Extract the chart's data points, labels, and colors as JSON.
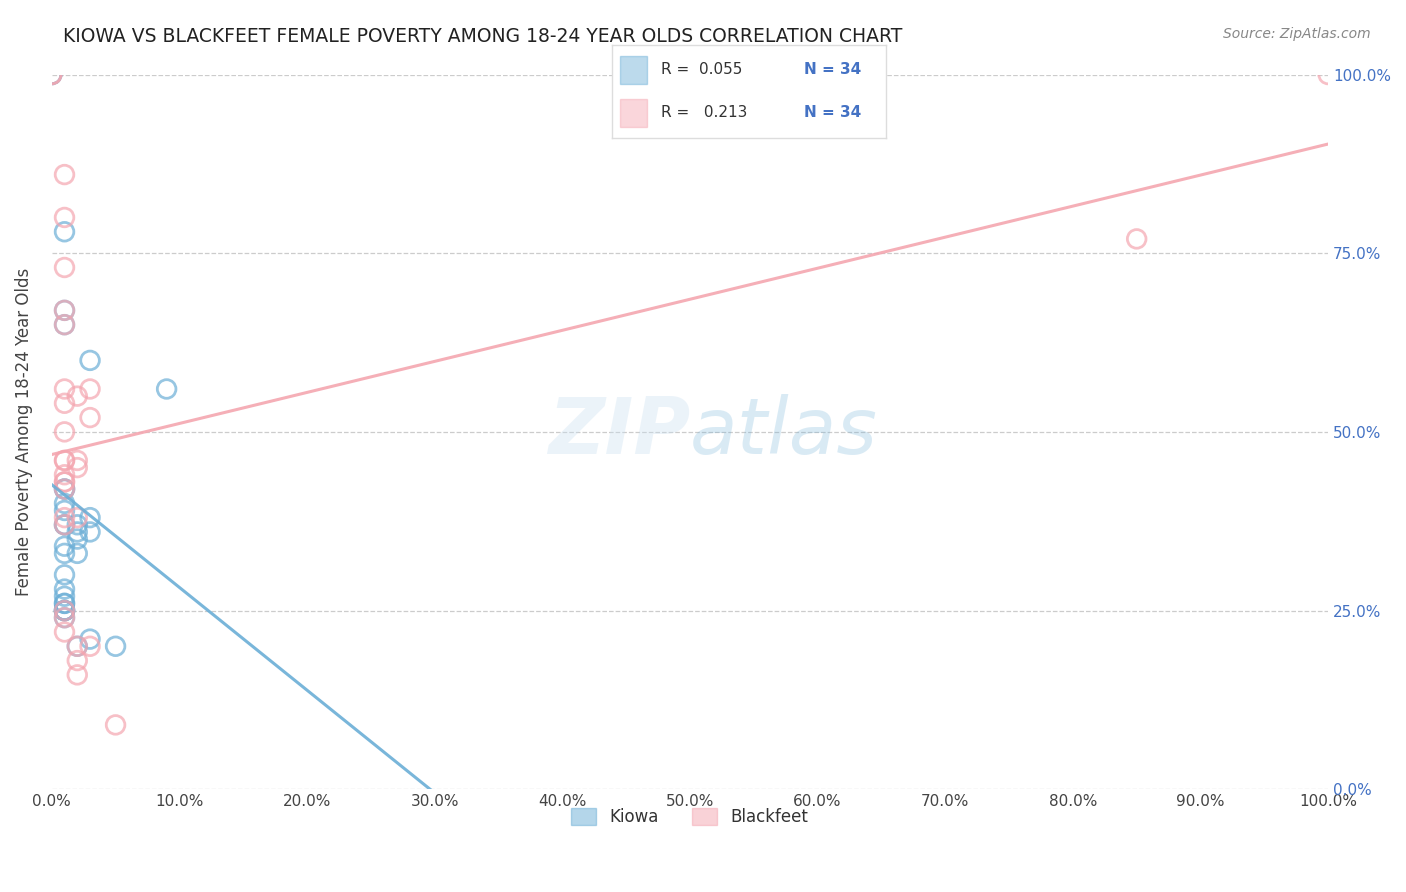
{
  "title": "KIOWA VS BLACKFEET FEMALE POVERTY AMONG 18-24 YEAR OLDS CORRELATION CHART",
  "source": "Source: ZipAtlas.com",
  "ylabel": "Female Poverty Among 18-24 Year Olds",
  "kiowa_color": "#6baed6",
  "blackfeet_color": "#f4a6b0",
  "kiowa_scatter": [
    [
      0.0,
      1.0
    ],
    [
      0.0,
      1.0
    ],
    [
      1.0,
      0.78
    ],
    [
      1.0,
      0.67
    ],
    [
      1.0,
      0.65
    ],
    [
      1.0,
      0.42
    ],
    [
      1.0,
      0.42
    ],
    [
      1.0,
      0.4
    ],
    [
      1.0,
      0.39
    ],
    [
      1.0,
      0.37
    ],
    [
      1.0,
      0.37
    ],
    [
      1.0,
      0.34
    ],
    [
      1.0,
      0.33
    ],
    [
      1.0,
      0.3
    ],
    [
      1.0,
      0.28
    ],
    [
      1.0,
      0.27
    ],
    [
      1.0,
      0.26
    ],
    [
      1.0,
      0.26
    ],
    [
      1.0,
      0.25
    ],
    [
      1.0,
      0.25
    ],
    [
      1.0,
      0.25
    ],
    [
      1.0,
      0.25
    ],
    [
      1.0,
      0.24
    ],
    [
      2.0,
      0.37
    ],
    [
      2.0,
      0.36
    ],
    [
      2.0,
      0.35
    ],
    [
      2.0,
      0.33
    ],
    [
      2.0,
      0.2
    ],
    [
      3.0,
      0.6
    ],
    [
      3.0,
      0.38
    ],
    [
      3.0,
      0.36
    ],
    [
      3.0,
      0.21
    ],
    [
      5.0,
      0.2
    ],
    [
      9.0,
      0.56
    ]
  ],
  "blackfeet_scatter": [
    [
      0.0,
      1.0
    ],
    [
      0.0,
      1.0
    ],
    [
      1.0,
      0.86
    ],
    [
      1.0,
      0.8
    ],
    [
      1.0,
      0.73
    ],
    [
      1.0,
      0.67
    ],
    [
      1.0,
      0.65
    ],
    [
      1.0,
      0.56
    ],
    [
      1.0,
      0.54
    ],
    [
      1.0,
      0.5
    ],
    [
      1.0,
      0.46
    ],
    [
      1.0,
      0.46
    ],
    [
      1.0,
      0.44
    ],
    [
      1.0,
      0.43
    ],
    [
      1.0,
      0.43
    ],
    [
      1.0,
      0.42
    ],
    [
      1.0,
      0.38
    ],
    [
      1.0,
      0.37
    ],
    [
      1.0,
      0.25
    ],
    [
      1.0,
      0.24
    ],
    [
      1.0,
      0.22
    ],
    [
      2.0,
      0.55
    ],
    [
      2.0,
      0.46
    ],
    [
      2.0,
      0.45
    ],
    [
      2.0,
      0.38
    ],
    [
      2.0,
      0.2
    ],
    [
      2.0,
      0.18
    ],
    [
      2.0,
      0.16
    ],
    [
      3.0,
      0.56
    ],
    [
      3.0,
      0.52
    ],
    [
      3.0,
      0.2
    ],
    [
      5.0,
      0.09
    ],
    [
      85.0,
      0.77
    ],
    [
      100.0,
      1.0
    ]
  ],
  "background_color": "#ffffff",
  "xlim": [
    0.0,
    100.0
  ],
  "ylim": [
    0.0,
    1.0
  ],
  "xtick_vals": [
    0,
    10,
    20,
    30,
    40,
    50,
    60,
    70,
    80,
    90,
    100
  ],
  "ytick_vals": [
    0.0,
    0.25,
    0.5,
    0.75,
    1.0
  ],
  "ytick_labels": [
    "0.0%",
    "25.0%",
    "50.0%",
    "75.0%",
    "100.0%"
  ],
  "grid_color": "#cccccc",
  "legend_r_kiowa": "R =  0.055",
  "legend_n_kiowa": "N = 34",
  "legend_r_blackfeet": "R =   0.213",
  "legend_n_blackfeet": "N = 34"
}
